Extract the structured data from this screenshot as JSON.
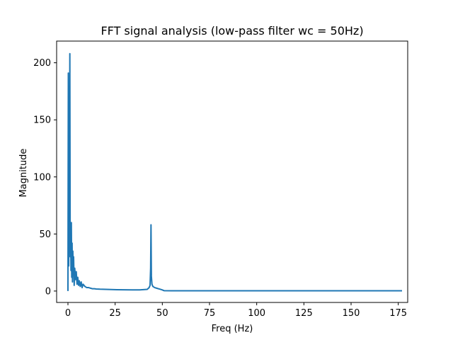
{
  "chart_data": {
    "type": "line",
    "title": "FFT signal analysis (low-pass filter wc = 50Hz)",
    "xlabel": "Freq (Hz)",
    "ylabel": "Magnitude",
    "xlim": [
      -6,
      180
    ],
    "ylim": [
      -10,
      219
    ],
    "grid": false,
    "legend": "none",
    "line_color": "#1f77b4",
    "x_ticks": [
      0,
      25,
      50,
      75,
      100,
      125,
      150,
      175
    ],
    "y_ticks": [
      0,
      50,
      100,
      150,
      200
    ],
    "x_tick_labels": [
      "0",
      "25",
      "50",
      "75",
      "100",
      "125",
      "150",
      "175"
    ],
    "y_tick_labels": [
      "0",
      "50",
      "100",
      "150",
      "200"
    ],
    "series": [
      {
        "x": [
          0,
          0.2,
          0.4,
          0.6,
          0.8,
          1.0,
          1.2,
          1.4,
          1.6,
          1.8,
          2.0,
          2.2,
          2.4,
          2.6,
          2.8,
          3.0,
          3.3,
          3.6,
          4.0,
          4.4,
          4.8,
          5.2,
          5.6,
          6.0,
          6.5,
          7.0,
          7.5,
          8.0,
          9,
          10,
          11,
          12,
          13,
          14,
          15,
          17,
          20,
          23,
          26,
          30,
          34,
          38,
          42,
          43,
          43.5,
          43.8,
          44.0,
          44.2,
          44.5,
          45,
          46,
          47,
          48,
          49,
          50,
          51,
          55,
          60,
          80,
          100,
          120,
          140,
          160,
          177
        ],
        "y": [
          0,
          191,
          22,
          80,
          45,
          208,
          30,
          55,
          18,
          60,
          12,
          42,
          8,
          35,
          14,
          30,
          5,
          20,
          10,
          17,
          6,
          12,
          5,
          9,
          4,
          8,
          3,
          6,
          4,
          3,
          3,
          2.5,
          2,
          2,
          1.8,
          1.6,
          1.5,
          1.3,
          1.2,
          1.1,
          1.0,
          1.0,
          1.5,
          3,
          5,
          20,
          58,
          13,
          6,
          4,
          3,
          2.5,
          2,
          1.5,
          1,
          0.3,
          0.2,
          0.2,
          0.2,
          0.2,
          0.2,
          0.2,
          0.2,
          0.2
        ]
      }
    ]
  }
}
